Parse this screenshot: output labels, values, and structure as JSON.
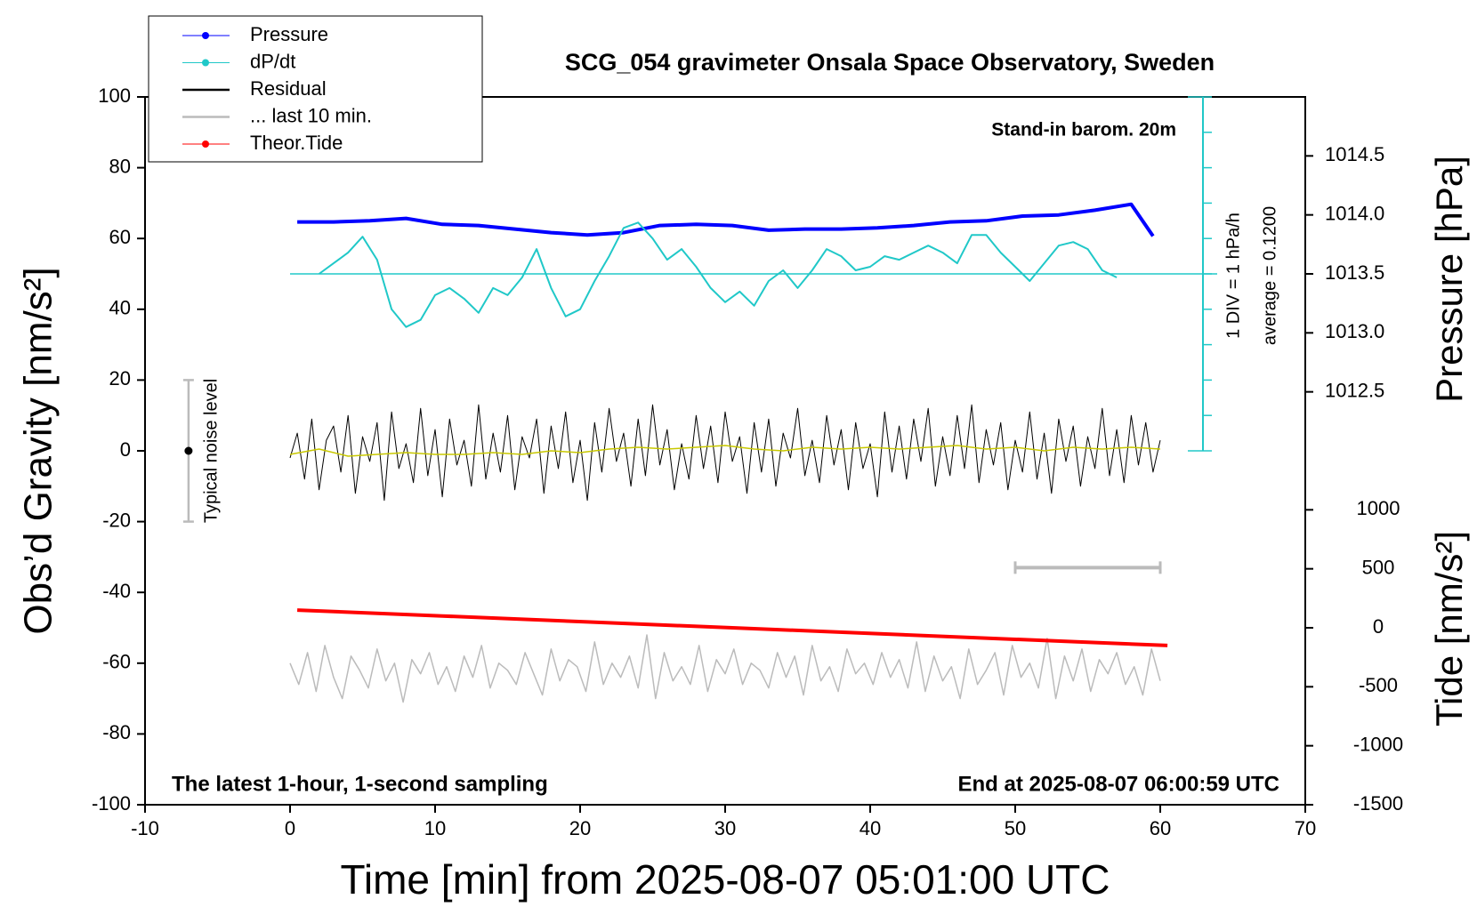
{
  "chart_data": {
    "type": "line",
    "title": "SCG_054 gravimeter Onsala Space Observatory, Sweden",
    "xlabel": "Time [min] from 2025-08-07 05:01:00 UTC",
    "ylabel": "Obs’d Gravity [nm/s²]",
    "y2label": "Pressure [hPa]",
    "y3label": "Tide [nm/s²]",
    "xlim": [
      -10,
      70
    ],
    "xticks": [
      -10,
      0,
      10,
      20,
      30,
      40,
      50,
      60,
      70
    ],
    "ylim": [
      -100,
      100
    ],
    "yticks": [
      -100,
      -80,
      -60,
      -40,
      -20,
      0,
      20,
      40,
      60,
      80,
      100
    ],
    "y2lim": [
      1012,
      1015
    ],
    "y2ticks": [
      1012.5,
      {
        "value": 1013,
        "label": "1013.0"
      },
      1013.5,
      {
        "value": 1014,
        "label": "1014.0"
      },
      1014.5
    ],
    "y3lim": [
      -1500,
      1500
    ],
    "y3ticks": [
      -1500,
      -1000,
      -500,
      0,
      500,
      1000
    ],
    "dpdt_lim": [
      -4.88,
      5.12
    ],
    "dpdt_ticks": [
      -4.88,
      -3.88,
      -2.88,
      -1.88,
      -0.88,
      0.12,
      1.12,
      2.12,
      3.12,
      4.12,
      5.12
    ],
    "dpdt_average": {
      "value": 0.12,
      "label": "average = 0.1200"
    },
    "dpdt_div_label": "1 DIV = 1 hPa/h",
    "annotations": [
      "Stand-in barom. 20m",
      "The latest 1-hour, 1-second sampling",
      "End at 2025-08-07 06:00:59 UTC"
    ],
    "noise_level": {
      "x": -7,
      "low": -20,
      "center": 0,
      "high": 20,
      "label": "Typical noise level"
    },
    "last10_bar": {
      "x": [
        50,
        60
      ],
      "y": -33
    },
    "series": [
      {
        "name": "Pressure",
        "color": "#0000ff",
        "marker": true,
        "axis": "y2",
        "x": [
          0.5,
          3,
          5.5,
          8,
          10.5,
          13,
          15.5,
          18,
          20.5,
          23,
          25.5,
          28,
          30.5,
          33,
          35.5,
          38,
          40.5,
          43,
          45.5,
          48,
          50.5,
          53,
          55.5,
          58,
          59.5
        ],
        "values": [
          1013.94,
          1013.94,
          1013.95,
          1013.97,
          1013.92,
          1013.91,
          1013.88,
          1013.85,
          1013.83,
          1013.85,
          1013.91,
          1013.92,
          1013.91,
          1013.87,
          1013.88,
          1013.88,
          1013.89,
          1013.91,
          1013.94,
          1013.95,
          1013.99,
          1014.0,
          1014.04,
          1014.09,
          1013.82
        ]
      },
      {
        "name": "dP/dt",
        "color": "#20c8c8",
        "marker": true,
        "axis": "dpdt",
        "x": [
          2,
          3,
          4,
          5,
          6,
          7,
          8,
          9,
          10,
          11,
          12,
          13,
          14,
          15,
          16,
          17,
          18,
          19,
          20,
          21,
          22,
          23,
          24,
          25,
          26,
          27,
          28,
          29,
          30,
          31,
          32,
          33,
          34,
          35,
          36,
          37,
          38,
          39,
          40,
          41,
          42,
          43,
          44,
          45,
          46,
          47,
          48,
          49,
          50,
          51,
          52,
          53,
          54,
          55,
          56,
          57
        ],
        "values": [
          0.12,
          0.42,
          0.72,
          1.17,
          0.52,
          -0.88,
          -1.38,
          -1.18,
          -0.48,
          -0.28,
          -0.58,
          -0.98,
          -0.28,
          -0.48,
          0.02,
          0.82,
          -0.28,
          -1.08,
          -0.88,
          -0.08,
          0.62,
          1.42,
          1.57,
          1.12,
          0.52,
          0.82,
          0.32,
          -0.28,
          -0.68,
          -0.38,
          -0.78,
          -0.08,
          0.22,
          -0.28,
          0.22,
          0.82,
          0.62,
          0.22,
          0.32,
          0.62,
          0.52,
          0.72,
          0.92,
          0.72,
          0.42,
          1.22,
          1.22,
          0.72,
          0.32,
          -0.08,
          0.42,
          0.92,
          1.02,
          0.82,
          0.22,
          0.02
        ]
      },
      {
        "name": "Residual",
        "color": "#000000",
        "marker": false,
        "axis": "y",
        "x": [
          0,
          0.5,
          1,
          1.5,
          2,
          2.5,
          3,
          3.5,
          4,
          4.5,
          5,
          5.5,
          6,
          6.5,
          7,
          7.5,
          8,
          8.5,
          9,
          9.5,
          10,
          10.5,
          11,
          11.5,
          12,
          12.5,
          13,
          13.5,
          14,
          14.5,
          15,
          15.5,
          16,
          16.5,
          17,
          17.5,
          18,
          18.5,
          19,
          19.5,
          20,
          20.5,
          21,
          21.5,
          22,
          22.5,
          23,
          23.5,
          24,
          24.5,
          25,
          25.5,
          26,
          26.5,
          27,
          27.5,
          28,
          28.5,
          29,
          29.5,
          30,
          30.5,
          31,
          31.5,
          32,
          32.5,
          33,
          33.5,
          34,
          34.5,
          35,
          35.5,
          36,
          36.5,
          37,
          37.5,
          38,
          38.5,
          39,
          39.5,
          40,
          40.5,
          41,
          41.5,
          42,
          42.5,
          43,
          43.5,
          44,
          44.5,
          45,
          45.5,
          46,
          46.5,
          47,
          47.5,
          48,
          48.5,
          49,
          49.5,
          50,
          50.5,
          51,
          51.5,
          52,
          52.5,
          53,
          53.5,
          54,
          54.5,
          55,
          55.5,
          56,
          56.5,
          57,
          57.5,
          58,
          58.5,
          59,
          59.5,
          60
        ],
        "values": [
          -2,
          5,
          -8,
          9,
          -11,
          3,
          7,
          -6,
          10,
          -12,
          4,
          -3,
          8,
          -14,
          11,
          -5,
          2,
          -9,
          12,
          -7,
          6,
          -13,
          9,
          -4,
          3,
          -10,
          13,
          -8,
          5,
          -6,
          10,
          -11,
          4,
          -2,
          9,
          -12,
          7,
          -5,
          11,
          -9,
          3,
          -14,
          8,
          -6,
          12,
          -3,
          5,
          -10,
          9,
          -7,
          13,
          -4,
          6,
          -11,
          2,
          -8,
          10,
          -5,
          7,
          -9,
          11,
          -3,
          4,
          -12,
          8,
          -6,
          9,
          -10,
          5,
          -2,
          12,
          -7,
          3,
          -9,
          10,
          -4,
          6,
          -11,
          8,
          -5,
          2,
          -13,
          11,
          -6,
          7,
          -8,
          9,
          -3,
          12,
          -10,
          4,
          -7,
          10,
          -5,
          13,
          -9,
          6,
          -4,
          8,
          -11,
          3,
          -6,
          11,
          -8,
          5,
          -12,
          9,
          -3,
          7,
          -10,
          4,
          -5,
          12,
          -7,
          6,
          -9,
          10,
          -4,
          8,
          -6,
          3
        ]
      },
      {
        "color": "#c8c800",
        "marker": false,
        "axis": "y",
        "x": [
          0,
          2,
          4,
          6,
          8,
          10,
          12,
          14,
          16,
          18,
          20,
          22,
          24,
          26,
          28,
          30,
          32,
          34,
          36,
          38,
          40,
          42,
          44,
          46,
          48,
          50,
          52,
          54,
          56,
          58,
          60
        ],
        "values": [
          -1,
          0.5,
          -1.5,
          -1,
          -0.5,
          -1,
          -1,
          -0.5,
          -1,
          0,
          -0.5,
          0.5,
          1,
          0.5,
          1,
          1.5,
          0.5,
          0,
          1,
          0.5,
          1,
          0.5,
          1,
          1.5,
          0.5,
          1,
          0,
          1,
          0.5,
          1,
          0.5
        ]
      },
      {
        "name": "... last 10 min.",
        "color": "#bbbbbb",
        "marker": false,
        "axis": "y",
        "x": [
          0,
          0.6,
          1.2,
          1.8,
          2.4,
          3,
          3.6,
          4.2,
          4.8,
          5.4,
          6,
          6.6,
          7.2,
          7.8,
          8.4,
          9,
          9.6,
          10.2,
          10.8,
          11.4,
          12,
          12.6,
          13.2,
          13.8,
          14.4,
          15,
          15.6,
          16.2,
          16.8,
          17.4,
          18,
          18.6,
          19.2,
          19.8,
          20.4,
          21,
          21.6,
          22.2,
          22.8,
          23.4,
          24,
          24.6,
          25.2,
          25.8,
          26.4,
          27,
          27.6,
          28.2,
          28.8,
          29.4,
          30,
          30.6,
          31.2,
          31.8,
          32.4,
          33,
          33.6,
          34.2,
          34.8,
          35.4,
          36,
          36.6,
          37.2,
          37.8,
          38.4,
          39,
          39.6,
          40.2,
          40.8,
          41.4,
          42,
          42.6,
          43.2,
          43.8,
          44.4,
          45,
          45.6,
          46.2,
          46.8,
          47.4,
          48,
          48.6,
          49.2,
          49.8,
          50.4,
          51,
          51.6,
          52.2,
          52.8,
          53.4,
          54,
          54.6,
          55.2,
          55.8,
          56.4,
          57,
          57.6,
          58.2,
          58.8,
          59.4,
          60
        ],
        "values": [
          -60,
          -66,
          -57,
          -68,
          -55,
          -64,
          -70,
          -58,
          -62,
          -67,
          -56,
          -65,
          -60,
          -71,
          -59,
          -63,
          -57,
          -66,
          -61,
          -68,
          -58,
          -64,
          -55,
          -67,
          -60,
          -62,
          -66,
          -57,
          -63,
          -69,
          -56,
          -65,
          -59,
          -61,
          -68,
          -54,
          -66,
          -60,
          -64,
          -58,
          -67,
          -52,
          -70,
          -57,
          -65,
          -61,
          -66,
          -55,
          -68,
          -59,
          -63,
          -56,
          -66,
          -60,
          -62,
          -67,
          -57,
          -64,
          -58,
          -69,
          -55,
          -65,
          -61,
          -68,
          -56,
          -63,
          -60,
          -66,
          -57,
          -64,
          -59,
          -67,
          -54,
          -68,
          -58,
          -65,
          -61,
          -70,
          -56,
          -66,
          -62,
          -57,
          -69,
          -55,
          -64,
          -60,
          -67,
          -53,
          -70,
          -58,
          -65,
          -56,
          -68,
          -59,
          -63,
          -57,
          -66,
          -61,
          -69,
          -56,
          -65
        ]
      },
      {
        "name": "Theor.Tide",
        "color": "#ff0000",
        "marker": true,
        "axis": "y3",
        "x": [
          0.5,
          10.5,
          20.5,
          30.5,
          40.5,
          50.5,
          60.5
        ],
        "values": [
          150,
          100,
          50,
          0,
          -50,
          -100,
          -150
        ]
      }
    ]
  }
}
